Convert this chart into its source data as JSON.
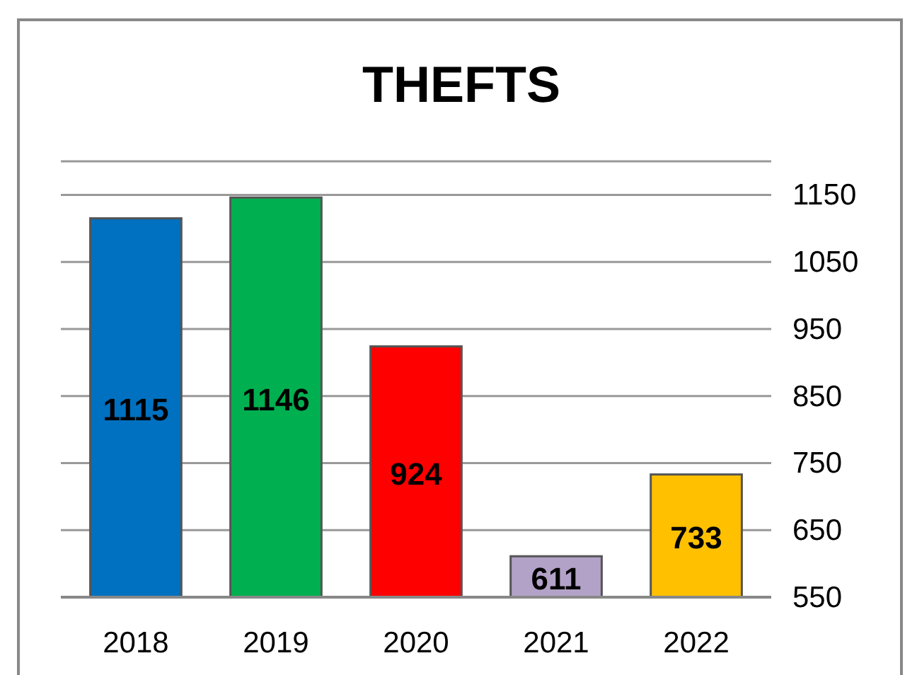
{
  "chart_data": {
    "type": "bar",
    "title": "THEFTS",
    "categories": [
      "2018",
      "2019",
      "2020",
      "2021",
      "2022"
    ],
    "values": [
      1115,
      1146,
      924,
      611,
      733
    ],
    "colors": [
      "#0070c0",
      "#00b050",
      "#ff0000",
      "#b3a2c7",
      "#ffc000"
    ],
    "ylim": [
      550,
      1200
    ],
    "yticks": [
      550,
      650,
      750,
      850,
      950,
      1050,
      1150,
      {
        "value": 1200,
        "label": null
      }
    ],
    "grid": "y",
    "data_labels": true
  }
}
